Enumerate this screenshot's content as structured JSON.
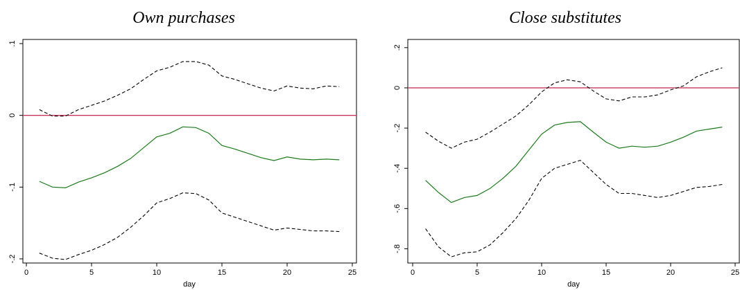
{
  "chart_data": [
    {
      "type": "line",
      "title": "Own purchases",
      "xlabel": "day",
      "ylabel": "",
      "xlim": [
        0,
        25
      ],
      "ylim": [
        -0.2,
        0.1
      ],
      "xticks": [
        0,
        5,
        10,
        15,
        20,
        25
      ],
      "xtick_labels": [
        "0",
        "5",
        "10",
        "15",
        "20",
        "25"
      ],
      "yticks": [
        -0.2,
        -0.1,
        0,
        0.1
      ],
      "ytick_labels": [
        "-.2",
        "-.1",
        "0",
        ".1"
      ],
      "reference_line": 0,
      "x": [
        1,
        2,
        3,
        4,
        5,
        6,
        7,
        8,
        9,
        10,
        11,
        12,
        13,
        14,
        15,
        16,
        17,
        18,
        19,
        20,
        21,
        22,
        23,
        24
      ],
      "series": [
        {
          "role": "estimate",
          "style": "solid",
          "color": "#1a7a1a",
          "values": [
            -0.092,
            -0.1,
            -0.101,
            -0.093,
            -0.087,
            -0.08,
            -0.071,
            -0.06,
            -0.045,
            -0.03,
            -0.025,
            -0.016,
            -0.017,
            -0.025,
            -0.042,
            -0.047,
            -0.053,
            -0.059,
            -0.063,
            -0.058,
            -0.061,
            -0.062,
            -0.061,
            -0.062
          ]
        },
        {
          "role": "upper",
          "style": "dashed",
          "color": "#000000",
          "values": [
            0.008,
            -0.001,
            -0.001,
            0.008,
            0.014,
            0.02,
            0.028,
            0.037,
            0.05,
            0.062,
            0.067,
            0.075,
            0.075,
            0.07,
            0.055,
            0.05,
            0.044,
            0.038,
            0.034,
            0.041,
            0.038,
            0.037,
            0.041,
            0.04
          ]
        },
        {
          "role": "lower",
          "style": "dashed",
          "color": "#000000",
          "values": [
            -0.192,
            -0.199,
            -0.201,
            -0.194,
            -0.188,
            -0.18,
            -0.17,
            -0.156,
            -0.14,
            -0.122,
            -0.116,
            -0.108,
            -0.109,
            -0.118,
            -0.136,
            -0.142,
            -0.148,
            -0.154,
            -0.16,
            -0.157,
            -0.159,
            -0.161,
            -0.161,
            -0.162
          ]
        }
      ],
      "colors": {
        "reference": "#c8375a",
        "estimate": "#1a7a1a",
        "bands": "#000000"
      }
    },
    {
      "type": "line",
      "title": "Close substitutes",
      "xlabel": "day",
      "ylabel": "",
      "xlim": [
        0,
        25
      ],
      "ylim": [
        -0.85,
        0.22
      ],
      "xticks": [
        0,
        5,
        10,
        15,
        20,
        25
      ],
      "xtick_labels": [
        "0",
        "5",
        "10",
        "15",
        "20",
        "25"
      ],
      "yticks": [
        -0.8,
        -0.6,
        -0.4,
        -0.2,
        0,
        0.2
      ],
      "ytick_labels": [
        "-.8",
        "-.6",
        "-.4",
        "-.2",
        "0",
        ".2"
      ],
      "reference_line": 0,
      "x": [
        1,
        2,
        3,
        4,
        5,
        6,
        7,
        8,
        9,
        10,
        11,
        12,
        13,
        14,
        15,
        16,
        17,
        18,
        19,
        20,
        21,
        22,
        23,
        24
      ],
      "series": [
        {
          "role": "estimate",
          "style": "solid",
          "color": "#1a7a1a",
          "values": [
            -0.46,
            -0.52,
            -0.57,
            -0.545,
            -0.535,
            -0.5,
            -0.45,
            -0.39,
            -0.31,
            -0.23,
            -0.185,
            -0.172,
            -0.168,
            -0.22,
            -0.27,
            -0.3,
            -0.29,
            -0.295,
            -0.29,
            -0.27,
            -0.245,
            -0.215,
            -0.205,
            -0.195
          ]
        },
        {
          "role": "upper",
          "style": "dashed",
          "color": "#000000",
          "values": [
            -0.22,
            -0.265,
            -0.3,
            -0.27,
            -0.255,
            -0.22,
            -0.18,
            -0.14,
            -0.085,
            -0.02,
            0.025,
            0.04,
            0.03,
            -0.015,
            -0.055,
            -0.065,
            -0.045,
            -0.045,
            -0.035,
            -0.01,
            0.01,
            0.055,
            0.08,
            0.1
          ]
        },
        {
          "role": "lower",
          "style": "dashed",
          "color": "#000000",
          "values": [
            -0.7,
            -0.79,
            -0.84,
            -0.82,
            -0.815,
            -0.78,
            -0.72,
            -0.65,
            -0.56,
            -0.45,
            -0.4,
            -0.38,
            -0.36,
            -0.42,
            -0.48,
            -0.525,
            -0.525,
            -0.535,
            -0.545,
            -0.535,
            -0.515,
            -0.495,
            -0.49,
            -0.48
          ]
        }
      ],
      "colors": {
        "reference": "#c8375a",
        "estimate": "#1a7a1a",
        "bands": "#000000"
      }
    }
  ]
}
